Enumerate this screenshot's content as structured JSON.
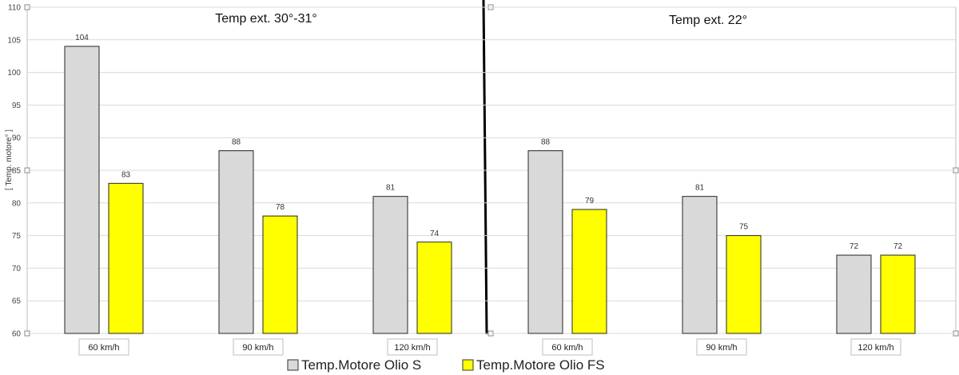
{
  "chart_data": [
    {
      "type": "bar",
      "title": "Temp ext. 30°-31°",
      "ylabel": "[ Temp. motore° ]",
      "ylim": [
        60,
        110
      ],
      "yticks": [
        60,
        65,
        70,
        75,
        80,
        85,
        90,
        95,
        100,
        105,
        110
      ],
      "categories": [
        "60 km/h",
        "90 km/h",
        "120 km/h"
      ],
      "series": [
        {
          "name": "Temp.Motore Olio S",
          "color": "#d9d9d9",
          "values": [
            104,
            88,
            81
          ]
        },
        {
          "name": "Temp.Motore Olio FS",
          "color": "#ffff00",
          "values": [
            83,
            78,
            74
          ]
        }
      ]
    },
    {
      "type": "bar",
      "title": "Temp ext. 22°",
      "ylim": [
        60,
        110
      ],
      "categories": [
        "60 km/h",
        "90 km/h",
        "120 km/h"
      ],
      "series": [
        {
          "name": "Temp.Motore Olio S",
          "color": "#d9d9d9",
          "values": [
            88,
            81,
            72
          ]
        },
        {
          "name": "Temp.Motore Olio FS",
          "color": "#ffff00",
          "values": [
            79,
            75,
            72
          ]
        }
      ]
    }
  ],
  "legend": {
    "items": [
      {
        "label": "Temp.Motore Olio S",
        "color": "#d9d9d9"
      },
      {
        "label": "Temp.Motore Olio FS",
        "color": "#ffff00"
      }
    ],
    "position": "bottom-center"
  }
}
